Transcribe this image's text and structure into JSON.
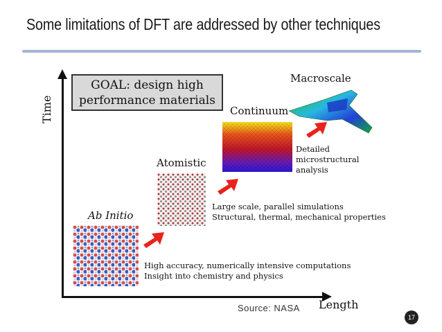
{
  "slide": {
    "title": "Some limitations of DFT are addressed by other techniques",
    "source": "Source: NASA",
    "page_number": "17"
  },
  "diagram": {
    "axis_y_label": "Time",
    "axis_x_label": "Length",
    "goal": [
      "GOAL: design high",
      "performance materials"
    ],
    "stages": {
      "ab_initio": {
        "name": "Ab Initio",
        "desc": [
          "High accuracy, numerically intensive computations",
          "Insight into chemistry and physics"
        ]
      },
      "atomistic": {
        "name": "Atomistic",
        "desc": [
          "Large scale, parallel simulations",
          "Structural, thermal, mechanical properties"
        ]
      },
      "continuum": {
        "name": "Continuum",
        "desc": [
          "Detailed",
          "microstructural",
          "analysis"
        ]
      },
      "macroscale": {
        "name": "Macroscale"
      }
    },
    "colors": {
      "arrow": "#e8231b",
      "axis": "#111111",
      "title_rule": "#9fb4d8",
      "goal_fill": "#d9d9d9"
    }
  }
}
